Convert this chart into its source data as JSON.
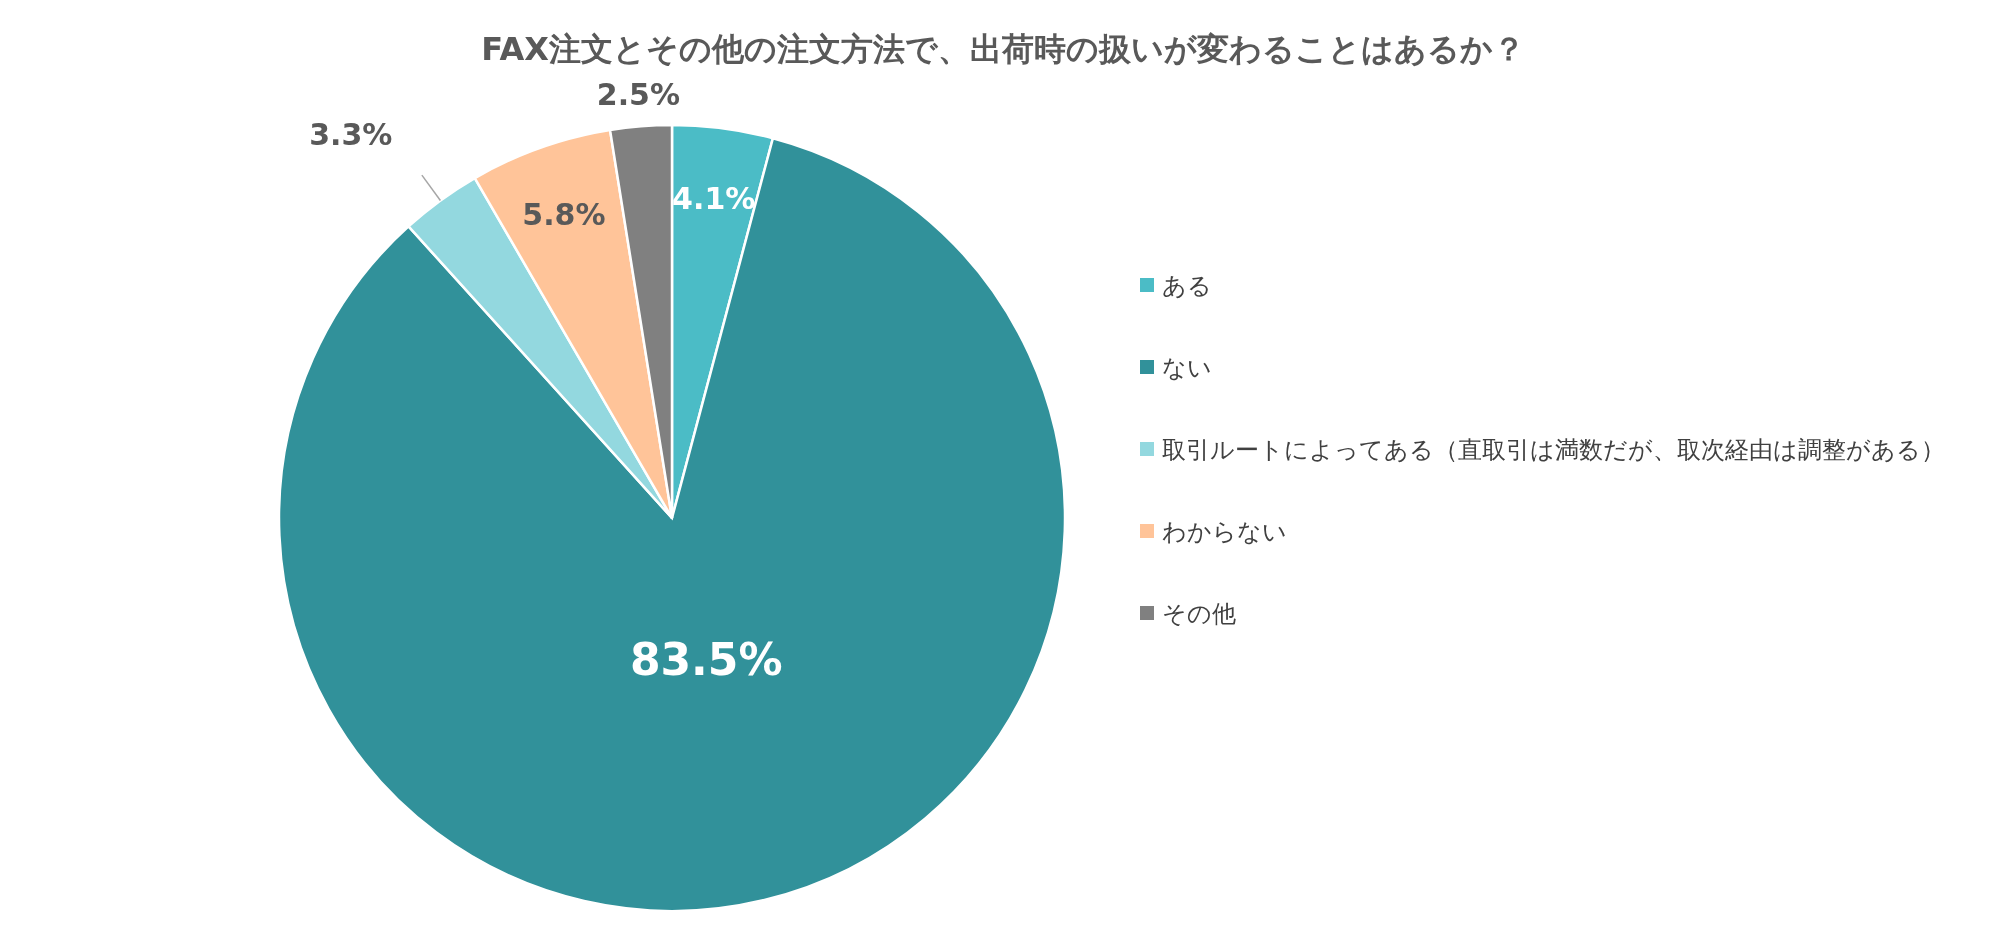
{
  "chart_data": {
    "type": "pie",
    "title": "FAX注文とその他の注文方法で、出荷時の扱いが変わることはあるか？",
    "categories": [
      "ある",
      "ない",
      "取引ルートによってある（直取引は満数だが、取次経由は調整がある）",
      "わからない",
      "その他"
    ],
    "values": [
      4.1,
      83.5,
      3.3,
      5.8,
      2.5
    ],
    "colors": [
      "#4bbcc6",
      "#31919a",
      "#93d8df",
      "#ffc499",
      "#808080"
    ],
    "value_labels": [
      "4.1%",
      "83.5%",
      "3.3%",
      "5.8%",
      "2.5%"
    ],
    "legend": "right"
  }
}
